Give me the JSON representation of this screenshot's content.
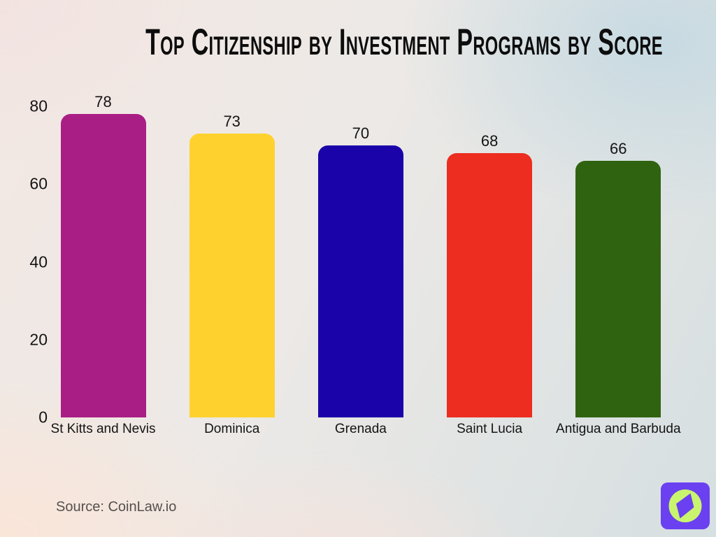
{
  "title": "Top Citizenship by Investment Programs by Score",
  "source": "Source: CoinLaw.io",
  "logo": {
    "bg_color": "#6b40f0",
    "circle_color": "#c9f56e",
    "icon": "compass-icon"
  },
  "chart_data": {
    "type": "bar",
    "title": "Top Citizenship by Investment Programs by Score",
    "categories": [
      "St Kitts and Nevis",
      "Dominica",
      "Grenada",
      "Saint Lucia",
      "Antigua and Barbuda"
    ],
    "values": [
      78,
      73,
      70,
      68,
      66
    ],
    "bar_colors": [
      "#a91e84",
      "#ffd12e",
      "#1a03a8",
      "#ec2d1f",
      "#2f6310"
    ],
    "value_labels": [
      "78",
      "73",
      "70",
      "68",
      "66"
    ],
    "yticks": [
      0,
      20,
      40,
      60,
      80
    ],
    "ylim": [
      0,
      80
    ],
    "xlabel": "",
    "ylabel": "",
    "grid": false,
    "legend": "none",
    "value_labels_shown": true
  }
}
